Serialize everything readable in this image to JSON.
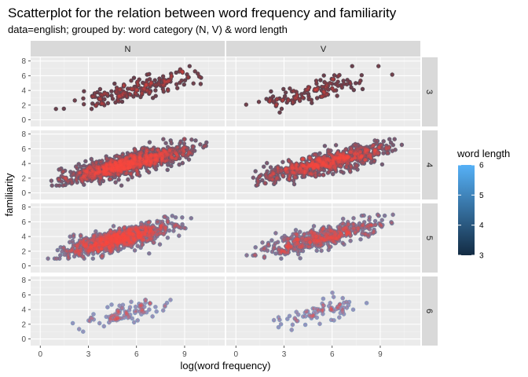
{
  "chart_data": {
    "type": "scatter",
    "title": "Scatterplot for the relation between word frequency and familiarity",
    "subtitle": "data=english; grouped by: word category (N, V) & word length",
    "xlabel": "log(word frequency)",
    "ylabel": "familiarity",
    "xlim": [
      -0.6,
      11.5
    ],
    "ylim": [
      -0.9,
      8.5
    ],
    "x_ticks": [
      0,
      3,
      6,
      9
    ],
    "y_ticks": [
      0,
      2,
      4,
      6,
      8
    ],
    "col_facets": [
      "N",
      "V"
    ],
    "row_facets": [
      "3",
      "4",
      "5",
      "6"
    ],
    "legend": {
      "title": "word length",
      "min": 3,
      "max": 6,
      "ticks": [
        3,
        4,
        5,
        6
      ],
      "low_color": "#132B43",
      "high_color": "#56B1F7",
      "placement": "right"
    },
    "point_overlay_color": "#F8463F",
    "panel_background": "#EBEBEB",
    "strip_background": "#D9D9D9",
    "grid": true,
    "panels": [
      {
        "col": "N",
        "row": "3",
        "length": 3,
        "n": 170,
        "x_range": [
          0.7,
          11.2
        ],
        "y_at_x0": 0.9,
        "slope": 0.54,
        "noise": 0.75
      },
      {
        "col": "V",
        "row": "3",
        "length": 3,
        "n": 120,
        "x_range": [
          0.0,
          10.0
        ],
        "y_at_x0": 1.4,
        "slope": 0.5,
        "noise": 0.75
      },
      {
        "col": "N",
        "row": "4",
        "length": 4,
        "n": 900,
        "x_range": [
          0.0,
          10.8
        ],
        "y_at_x0": 1.2,
        "slope": 0.5,
        "noise": 0.7
      },
      {
        "col": "V",
        "row": "4",
        "length": 4,
        "n": 650,
        "x_range": [
          0.0,
          11.2
        ],
        "y_at_x0": 1.2,
        "slope": 0.52,
        "noise": 0.7
      },
      {
        "col": "N",
        "row": "5",
        "length": 5,
        "n": 800,
        "x_range": [
          0.0,
          9.8
        ],
        "y_at_x0": 1.3,
        "slope": 0.48,
        "noise": 0.7
      },
      {
        "col": "V",
        "row": "5",
        "length": 5,
        "n": 420,
        "x_range": [
          0.0,
          10.8
        ],
        "y_at_x0": 1.1,
        "slope": 0.52,
        "noise": 0.7
      },
      {
        "col": "N",
        "row": "6",
        "length": 6,
        "n": 95,
        "x_range": [
          1.5,
          9.2
        ],
        "y_at_x0": 0.9,
        "slope": 0.5,
        "noise": 0.7
      },
      {
        "col": "V",
        "row": "6",
        "length": 6,
        "n": 80,
        "x_range": [
          1.0,
          9.5
        ],
        "y_at_x0": 0.9,
        "slope": 0.52,
        "noise": 0.7
      }
    ]
  }
}
